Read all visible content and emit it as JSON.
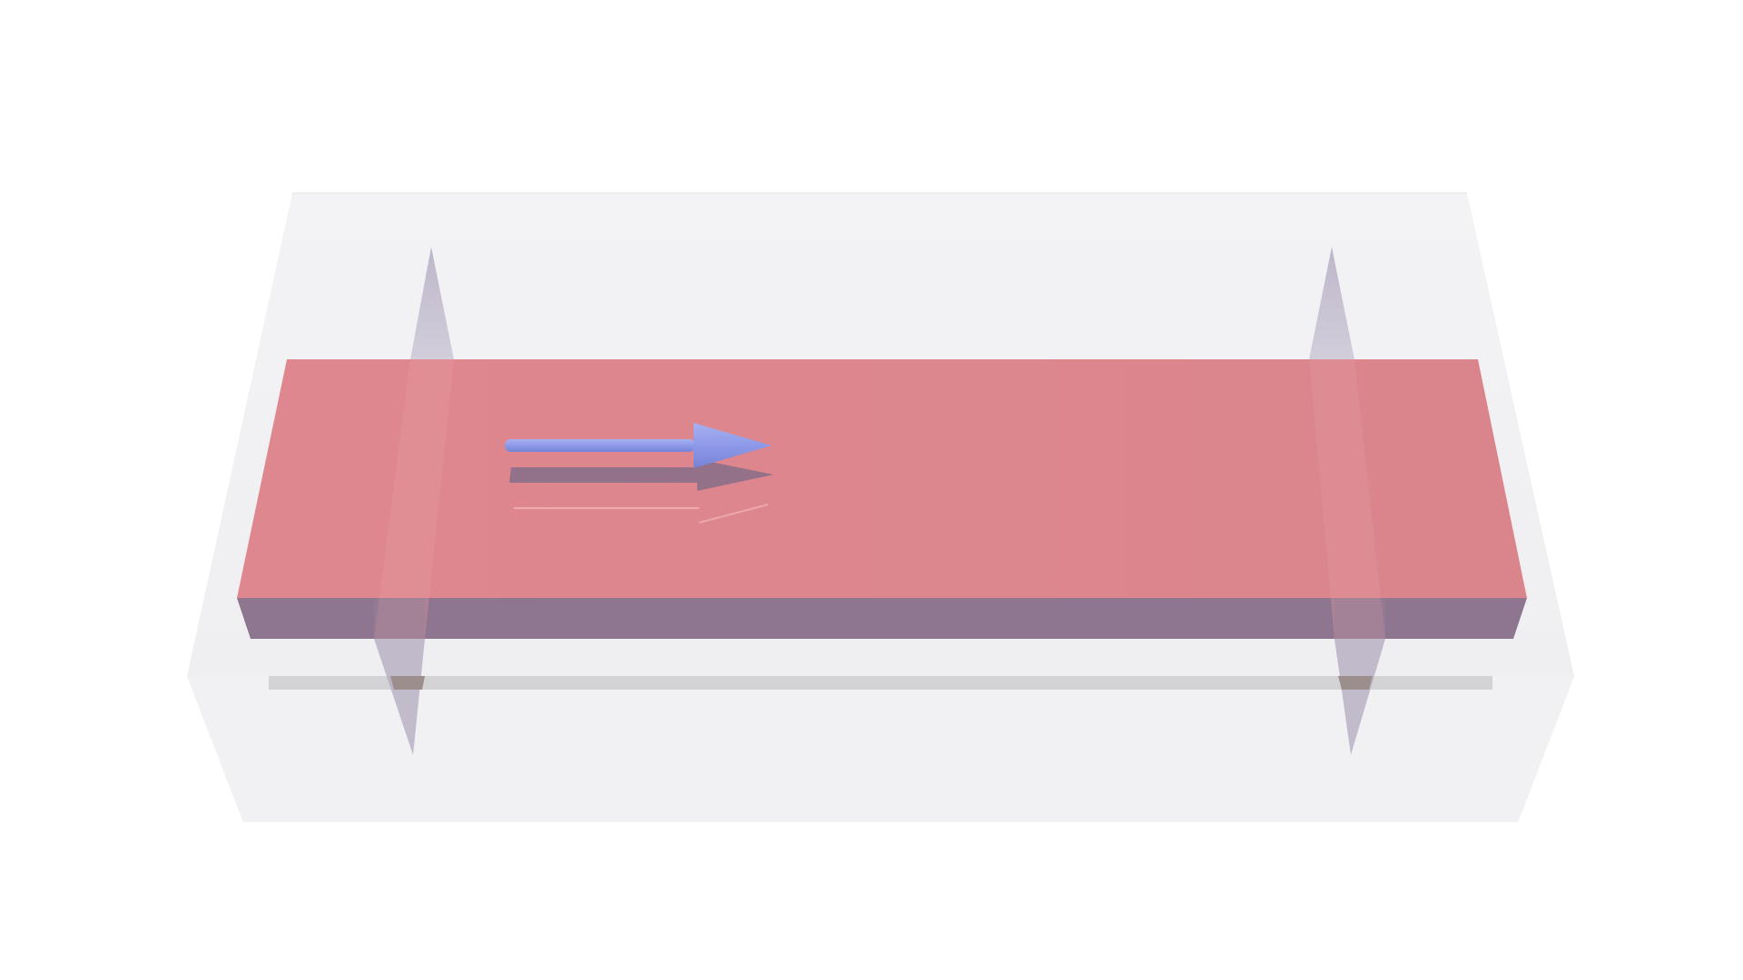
{
  "scene": {
    "background": "#ffffff",
    "colors": {
      "container_face": "#f2f2f4",
      "container_edge": "#d6d6da",
      "container_side": "#d9d9dd",
      "container_ledge": "#cfcfd2",
      "slab_top": "#dc868d",
      "slab_side": "#8c7690",
      "pin": "#b9b3c4",
      "arrow": "#8d99e6",
      "arrow_shadow": "#6d6c8c"
    },
    "objects": [
      "transparent-container",
      "pink-slab",
      "left-pin",
      "right-pin",
      "blue-arrow"
    ]
  }
}
